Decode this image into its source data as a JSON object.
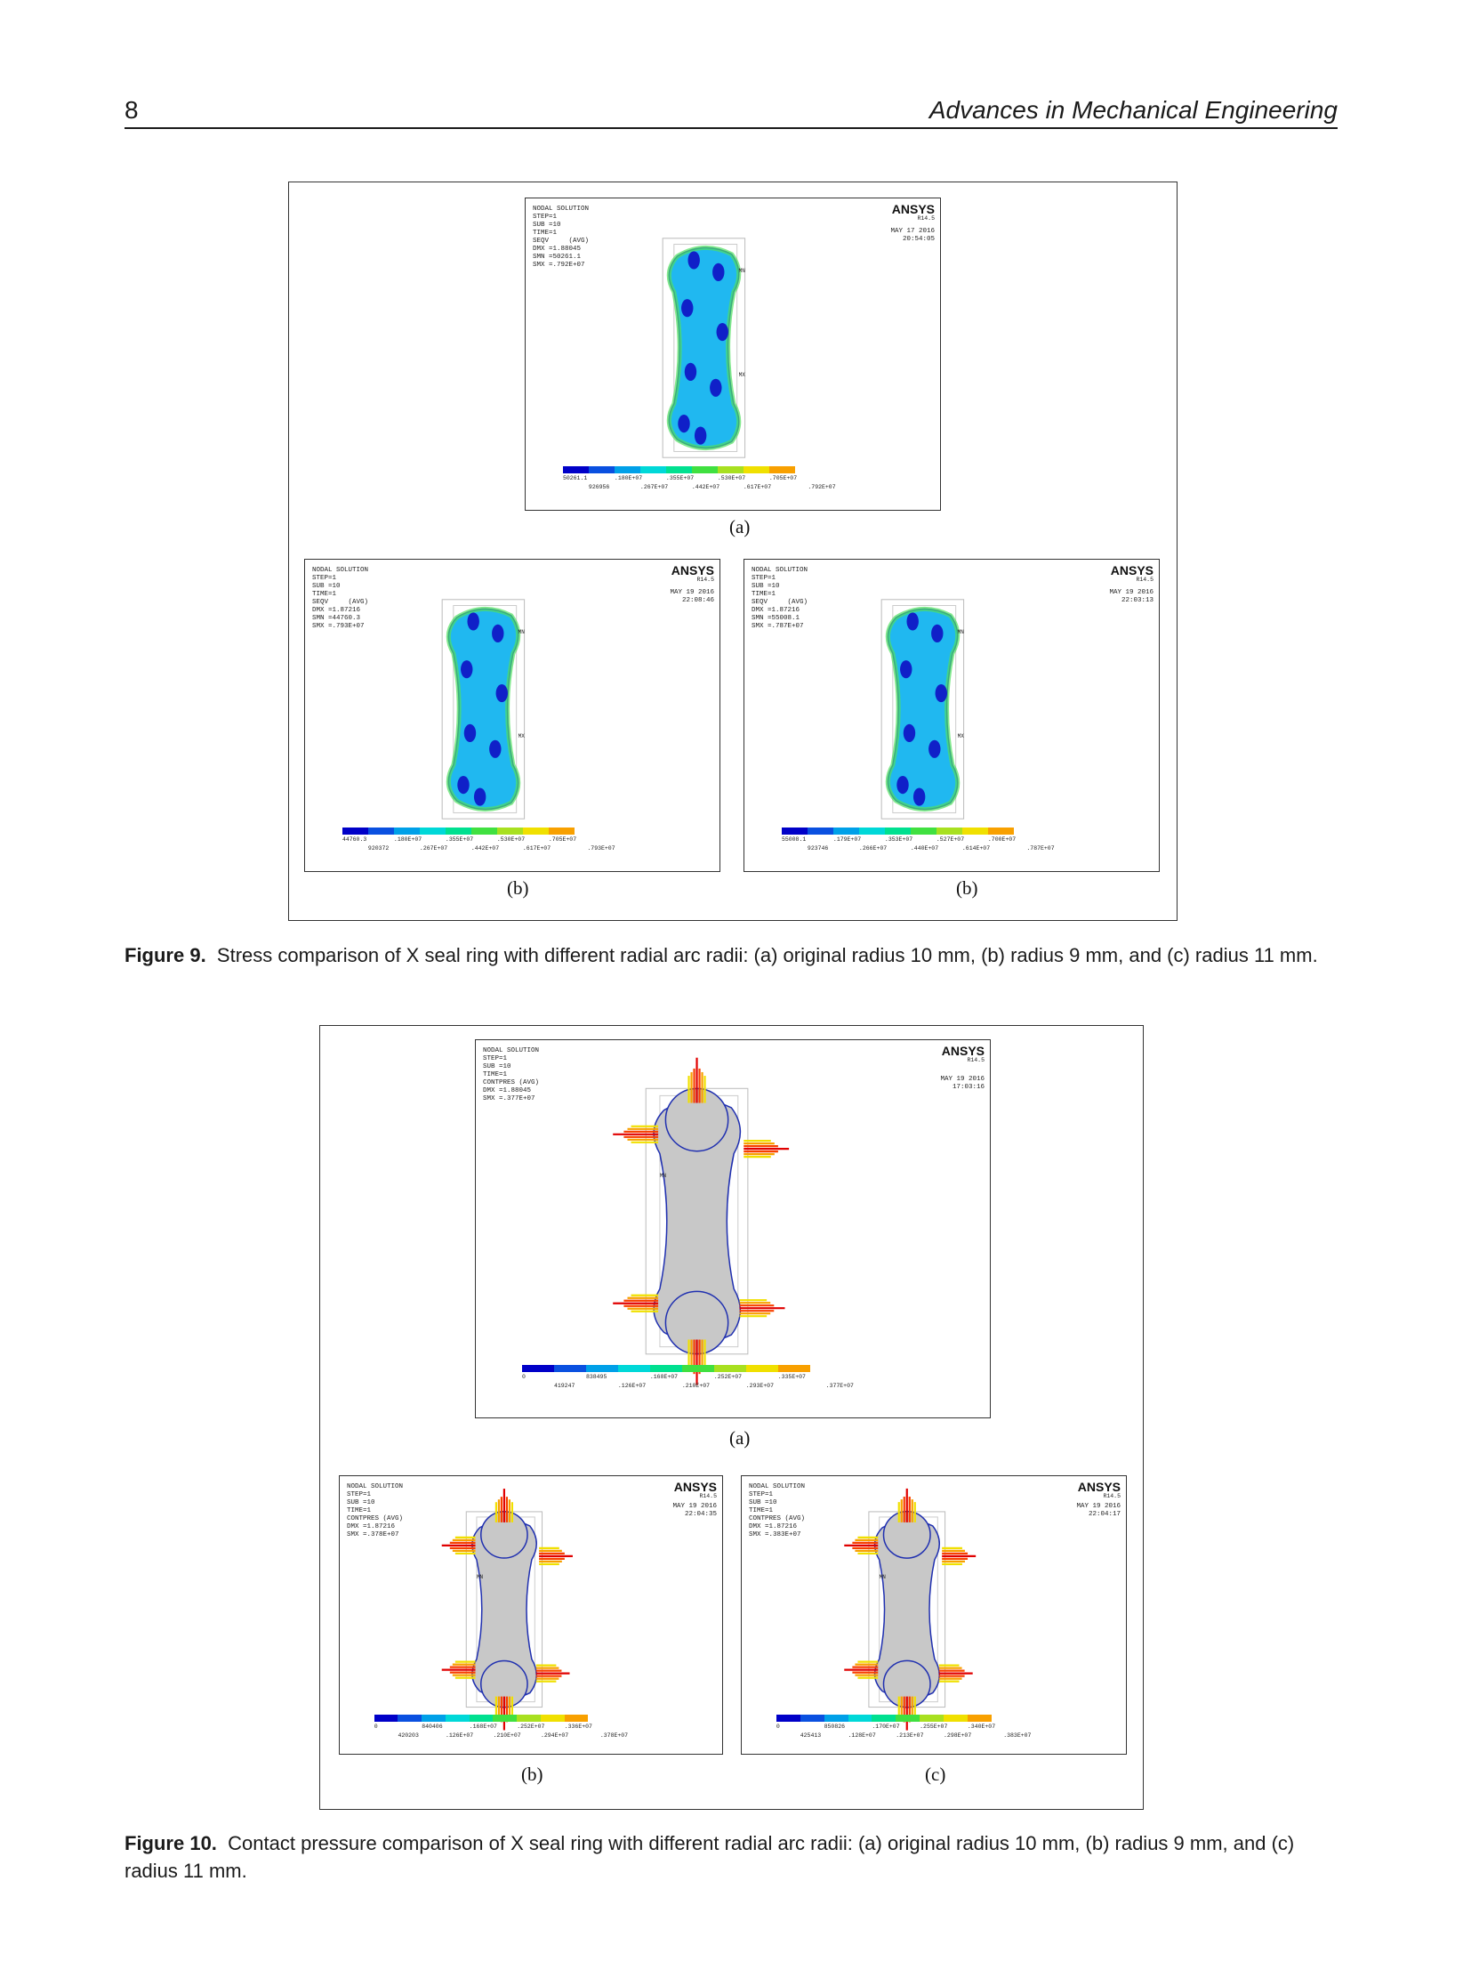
{
  "header": {
    "page_number": "8",
    "journal": "Advances in Mechanical Engineering"
  },
  "colormap": [
    "#0000c8",
    "#0a50e0",
    "#00a0e8",
    "#00d8d8",
    "#00e090",
    "#40e040",
    "#a8e020",
    "#f0e000",
    "#f8a000",
    "#f84000",
    "#e00000"
  ],
  "fig9": {
    "caption_label": "Figure 9.",
    "caption_text": "Stress comparison of X seal ring with different radial arc radii: (a) original radius 10 mm, (b) radius 9 mm, and (c) radius 11 mm.",
    "panels": [
      {
        "sublabel": "(a)",
        "brand": "ANSYS",
        "rev": "R14.5",
        "info": [
          "NODAL SOLUTION",
          "STEP=1",
          "SUB =10",
          "TIME=1",
          "SEQV     (AVG)",
          "DMX =1.88045",
          "SMN =50261.1",
          "SMX =.792E+07"
        ],
        "date": [
          "MAY 17 2016",
          "20:54:05"
        ],
        "ticks_low": [
          "50261.1",
          ".180E+07",
          ".355E+07",
          ".530E+07",
          ".705E+07"
        ],
        "ticks_high": [
          "926956",
          ".267E+07",
          ".442E+07",
          ".617E+07",
          ".792E+07"
        ]
      },
      {
        "sublabel": "(b)",
        "brand": "ANSYS",
        "rev": "R14.5",
        "info": [
          "NODAL SOLUTION",
          "STEP=1",
          "SUB =10",
          "TIME=1",
          "SEQV     (AVG)",
          "DMX =1.87216",
          "SMN =44760.3",
          "SMX =.793E+07"
        ],
        "date": [
          "MAY 19 2016",
          "22:08:46"
        ],
        "ticks_low": [
          "44760.3",
          ".180E+07",
          ".355E+07",
          ".530E+07",
          ".705E+07"
        ],
        "ticks_high": [
          "920372",
          ".267E+07",
          ".442E+07",
          ".617E+07",
          ".793E+07"
        ]
      },
      {
        "sublabel": "(b)",
        "brand": "ANSYS",
        "rev": "R14.5",
        "info": [
          "NODAL SOLUTION",
          "STEP=1",
          "SUB =10",
          "TIME=1",
          "SEQV     (AVG)",
          "DMX =1.87216",
          "SMN =55008.1",
          "SMX =.787E+07"
        ],
        "date": [
          "MAY 19 2016",
          "22:03:13"
        ],
        "ticks_low": [
          "55008.1",
          ".179E+07",
          ".353E+07",
          ".527E+07",
          ".700E+07"
        ],
        "ticks_high": [
          "923746",
          ".266E+07",
          ".440E+07",
          ".614E+07",
          ".787E+07"
        ]
      }
    ]
  },
  "fig10": {
    "caption_label": "Figure 10.",
    "caption_text": "Contact pressure comparison of X seal ring with different radial arc radii: (a) original radius 10 mm, (b) radius 9 mm, and (c) radius 11 mm.",
    "panels": [
      {
        "sublabel": "(a)",
        "brand": "ANSYS",
        "rev": "R14.5",
        "info": [
          "NODAL SOLUTION",
          "STEP=1",
          "SUB =10",
          "TIME=1",
          "CONTPRES (AVG)",
          "DMX =1.88045",
          "SMX =.377E+07"
        ],
        "date": [
          "MAY 19 2016",
          "17:03:16"
        ],
        "ticks_low": [
          "0",
          "838495",
          ".168E+07",
          ".252E+07",
          ".335E+07"
        ],
        "ticks_high": [
          "419247",
          ".126E+07",
          ".210E+07",
          ".293E+07",
          ".377E+07"
        ]
      },
      {
        "sublabel": "(b)",
        "brand": "ANSYS",
        "rev": "R14.5",
        "info": [
          "NODAL SOLUTION",
          "STEP=1",
          "SUB =10",
          "TIME=1",
          "CONTPRES (AVG)",
          "DMX =1.87216",
          "SMX =.378E+07"
        ],
        "date": [
          "MAY 19 2016",
          "22:04:35"
        ],
        "ticks_low": [
          "0",
          "840406",
          ".168E+07",
          ".252E+07",
          ".336E+07"
        ],
        "ticks_high": [
          "420203",
          ".126E+07",
          ".210E+07",
          ".294E+07",
          ".378E+07"
        ]
      },
      {
        "sublabel": "(c)",
        "brand": "ANSYS",
        "rev": "R14.5",
        "info": [
          "NODAL SOLUTION",
          "STEP=1",
          "SUB =10",
          "TIME=1",
          "CONTPRES (AVG)",
          "DMX =1.87216",
          "SMX =.383E+07"
        ],
        "date": [
          "MAY 19 2016",
          "22:04:17"
        ],
        "ticks_low": [
          "0",
          "850826",
          ".170E+07",
          ".255E+07",
          ".340E+07"
        ],
        "ticks_high": [
          "425413",
          ".128E+07",
          ".213E+07",
          ".298E+07",
          ".383E+07"
        ]
      }
    ]
  }
}
